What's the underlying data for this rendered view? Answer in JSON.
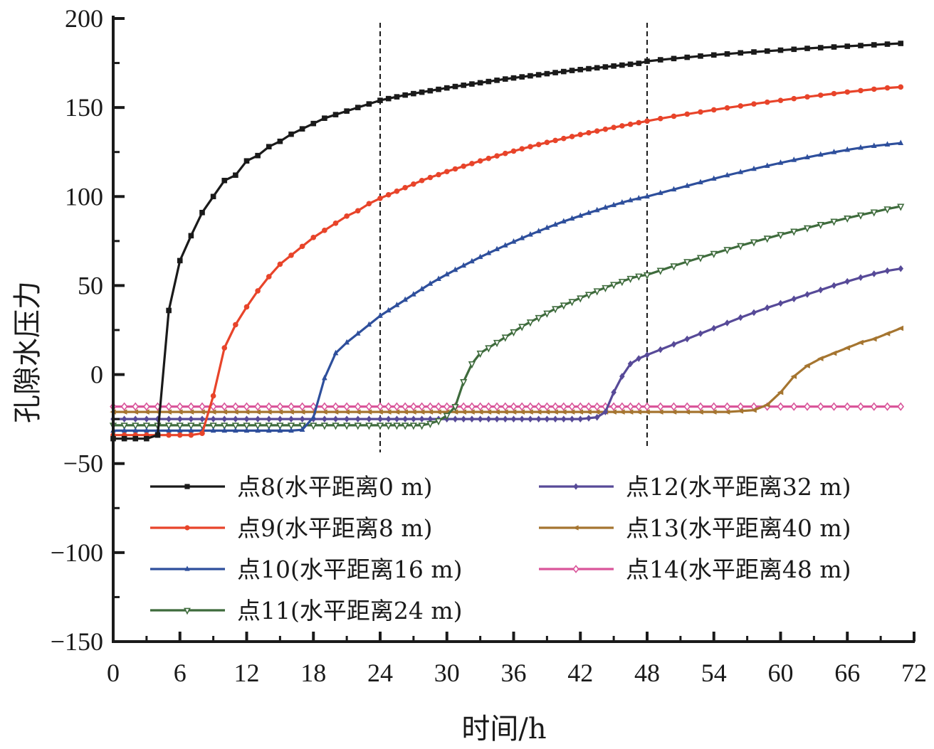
{
  "chart_data": {
    "type": "line",
    "title": "",
    "xlabel": "时间/h",
    "ylabel": "孔隙水压力",
    "xlim": [
      0,
      72
    ],
    "ylim": [
      -150,
      200
    ],
    "xticks": [
      "0",
      "6",
      "12",
      "18",
      "24",
      "30",
      "36",
      "42",
      "48",
      "54",
      "60",
      "66",
      "72"
    ],
    "yticks": [
      "200",
      "150",
      "100",
      "50",
      "0",
      "−50",
      "−100",
      "−150"
    ],
    "grid": false,
    "legend_position": "lower-center",
    "reference_lines": [
      {
        "axis": "x",
        "value": 24,
        "style": "dashed"
      },
      {
        "axis": "x",
        "value": 48,
        "style": "dashed"
      }
    ],
    "x": [
      0,
      1,
      2,
      3,
      4,
      5,
      6,
      7,
      8,
      9,
      10,
      11,
      12,
      13,
      14,
      15,
      16,
      17,
      18,
      19,
      20,
      21,
      22,
      23,
      24,
      24.75,
      25.5,
      26.25,
      27,
      27.75,
      28.5,
      29.25,
      30,
      30.75,
      31.5,
      32.25,
      33,
      33.75,
      34.5,
      35.25,
      36,
      36.75,
      37.5,
      38.25,
      39,
      39.75,
      40.5,
      41.25,
      42,
      42.75,
      43.5,
      44.25,
      45,
      45.75,
      46.5,
      47.25,
      48,
      49.2,
      50.4,
      51.6,
      52.8,
      54,
      55.2,
      56.4,
      57.6,
      58.8,
      60,
      61.2,
      62.4,
      63.6,
      64.8,
      66,
      67.2,
      68.4,
      69.6,
      70.8
    ],
    "series": [
      {
        "name": "点8(水平距离0 m)",
        "color": "#1a1a1a",
        "marker": "square",
        "values": [
          -36,
          -36,
          -36,
          -36,
          -34,
          36,
          64,
          78,
          91,
          100,
          109,
          112,
          120,
          123,
          128,
          131,
          135,
          138,
          141,
          144,
          146,
          148,
          150,
          152,
          154,
          155,
          156,
          157,
          157.8,
          158.6,
          159.4,
          160.2,
          161,
          161.8,
          162.5,
          163.2,
          163.9,
          164.6,
          165.3,
          166,
          166.6,
          167.2,
          167.8,
          168.4,
          169,
          169.6,
          170.2,
          170.8,
          171.3,
          171.8,
          172.3,
          172.8,
          173.3,
          173.8,
          174.3,
          174.8,
          176,
          176.8,
          177.5,
          178.2,
          178.9,
          179.5,
          180.1,
          180.7,
          181.2,
          181.7,
          182.2,
          182.7,
          183.2,
          183.6,
          184,
          184.4,
          184.8,
          185.2,
          185.6,
          186
        ]
      },
      {
        "name": "点9(水平距离8 m)",
        "color": "#e8442a",
        "marker": "circle",
        "values": [
          -34,
          -34,
          -34,
          -34,
          -34,
          -34,
          -34,
          -34,
          -33,
          -12,
          15,
          28,
          38,
          47,
          55,
          62,
          67,
          72,
          77,
          81,
          85,
          89,
          92,
          96,
          99,
          101,
          103,
          105,
          107,
          109,
          110.7,
          112.3,
          114,
          115.5,
          117,
          118.5,
          120,
          121.4,
          122.8,
          124.2,
          125.5,
          126.8,
          128,
          129.2,
          130.4,
          131.5,
          132.6,
          133.7,
          134.8,
          135.8,
          136.8,
          137.8,
          138.8,
          139.7,
          140.6,
          141.5,
          142.4,
          143.8,
          145.1,
          146.3,
          147.5,
          148.7,
          149.8,
          150.9,
          152,
          153,
          154,
          155,
          156,
          156.9,
          157.8,
          158.7,
          159.5,
          160.3,
          161,
          161.5
        ]
      },
      {
        "name": "点10(水平距离16 m)",
        "color": "#2e4f9c",
        "marker": "triangle-up",
        "values": [
          -31.5,
          -31.5,
          -31.5,
          -31.5,
          -31.5,
          -31.5,
          -31.5,
          -31.5,
          -31.5,
          -31.5,
          -31.5,
          -31.5,
          -31.5,
          -31.5,
          -31.5,
          -31.5,
          -31.5,
          -31,
          -24,
          -2,
          12,
          18,
          23,
          28,
          33,
          36,
          39,
          42,
          45,
          48,
          51,
          53.7,
          56.3,
          58.8,
          61.2,
          63.6,
          66,
          68.2,
          70.4,
          72.5,
          74.6,
          76.6,
          78.6,
          80.5,
          82.4,
          84.2,
          86,
          87.6,
          89.2,
          90.8,
          92.3,
          93.8,
          95.2,
          96.6,
          97.9,
          99,
          100,
          102,
          104,
          106,
          108,
          110,
          111.9,
          113.7,
          115.5,
          117.2,
          118.9,
          120.5,
          122,
          123.5,
          124.9,
          126.2,
          127.4,
          128.4,
          129.2,
          130
        ]
      },
      {
        "name": "点11(水平距离24 m)",
        "color": "#3e6b3c",
        "marker": "triangle-down-open",
        "values": [
          -28.5,
          -28.5,
          -28.5,
          -28.5,
          -28.5,
          -28.5,
          -28.5,
          -28.5,
          -28.5,
          -28.5,
          -28.5,
          -28.5,
          -28.5,
          -28.5,
          -28.5,
          -28.5,
          -28.5,
          -28.5,
          -28.5,
          -28.5,
          -28.5,
          -28.5,
          -28.5,
          -28.5,
          -28.5,
          -28.5,
          -28.5,
          -28.5,
          -28.5,
          -28.5,
          -27.5,
          -26,
          -23,
          -18,
          -4,
          6,
          12,
          15,
          18,
          21,
          24,
          27,
          29.5,
          32,
          34.5,
          37,
          39,
          41,
          43,
          45,
          47,
          48.8,
          50.6,
          52.3,
          54,
          55.3,
          56,
          58.5,
          61,
          63.4,
          65.7,
          68,
          70.2,
          72.4,
          74.5,
          76.6,
          78.6,
          80.5,
          82.4,
          84.3,
          86.1,
          87.9,
          89.6,
          91.3,
          93,
          94.5
        ]
      },
      {
        "name": "点12(水平距离32 m)",
        "color": "#574a98",
        "marker": "diamond",
        "values": [
          -25,
          -25,
          -25,
          -25,
          -25,
          -25,
          -25,
          -25,
          -25,
          -25,
          -25,
          -25,
          -25,
          -25,
          -25,
          -25,
          -25,
          -25,
          -25,
          -25,
          -25,
          -25,
          -25,
          -25,
          -25,
          -25,
          -25,
          -25,
          -25,
          -25,
          -25,
          -25,
          -25,
          -25,
          -25,
          -25,
          -25,
          -25,
          -25,
          -25,
          -25,
          -25,
          -25,
          -25,
          -25,
          -25,
          -25,
          -25,
          -25,
          -24.5,
          -24,
          -21,
          -10,
          -1,
          6,
          9,
          11,
          14,
          17,
          20,
          23,
          26,
          29,
          32,
          34.8,
          37.5,
          40,
          42.5,
          45,
          47.5,
          50,
          52.3,
          54.5,
          56.6,
          58.3,
          59.5
        ]
      },
      {
        "name": "点13(水平距离40 m)",
        "color": "#a57530",
        "marker": "triangle-left",
        "values": [
          -21,
          -21,
          -21,
          -21,
          -21,
          -21,
          -21,
          -21,
          -21,
          -21,
          -21,
          -21,
          -21,
          -21,
          -21,
          -21,
          -21,
          -21,
          -21,
          -21,
          -21,
          -21,
          -21,
          -21,
          -21,
          -21,
          -21,
          -21,
          -21,
          -21,
          -21,
          -21,
          -21,
          -21,
          -21,
          -21,
          -21,
          -21,
          -21,
          -21,
          -21,
          -21,
          -21,
          -21,
          -21,
          -21,
          -21,
          -21,
          -21,
          -21,
          -21,
          -21,
          -21,
          -21,
          -21,
          -21,
          -21,
          -21,
          -21,
          -21,
          -21,
          -21,
          -21,
          -20.5,
          -20,
          -17,
          -10,
          -1,
          5,
          9,
          12,
          15,
          18,
          20,
          23,
          26
        ]
      },
      {
        "name": "点14(水平距离48 m)",
        "color": "#d9559a",
        "marker": "diamond-open",
        "values": [
          -18,
          -18,
          -18,
          -18,
          -18,
          -18,
          -18,
          -18,
          -18,
          -18,
          -18,
          -18,
          -18,
          -18,
          -18,
          -18,
          -18,
          -18,
          -18,
          -18,
          -18,
          -18,
          -18,
          -18,
          -18,
          -18,
          -18,
          -18,
          -18,
          -18,
          -18,
          -18,
          -18,
          -18,
          -18,
          -18,
          -18,
          -18,
          -18,
          -18,
          -18,
          -18,
          -18,
          -18,
          -18,
          -18,
          -18,
          -18,
          -18,
          -18,
          -18,
          -18,
          -18,
          -18,
          -18,
          -18,
          -18,
          -18,
          -18,
          -18,
          -18,
          -18,
          -18,
          -18,
          -18,
          -18,
          -18,
          -18,
          -18,
          -18,
          -18,
          -18,
          -18,
          -18,
          -18,
          -18
        ]
      }
    ]
  }
}
